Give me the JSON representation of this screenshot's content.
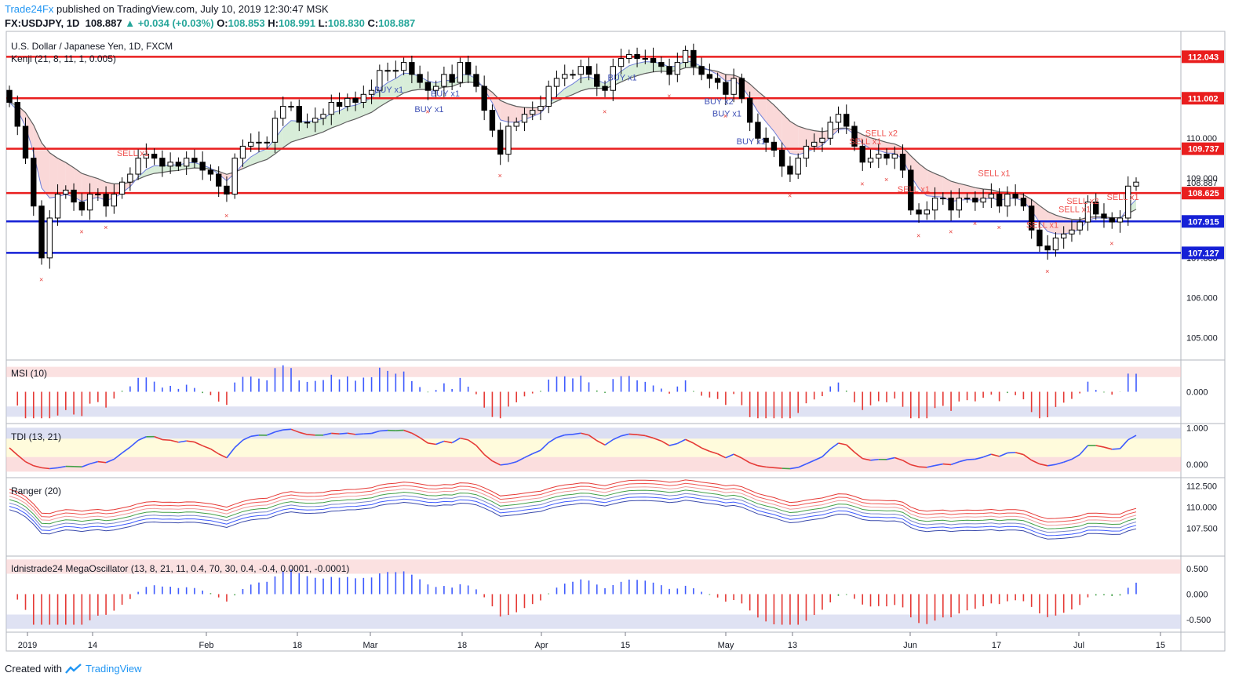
{
  "header": {
    "brand": "Trade24Fx",
    "published": " published on TradingView.com, July 10, 2019 12:30:47 MSK",
    "symbol": "FX:USDJPY, 1D",
    "last": "108.887",
    "change": "▲ +0.034 (+0.03%)",
    "o_label": "O:",
    "o": "108.853",
    "h_label": "H:",
    "h": "108.991",
    "l_label": "L:",
    "l": "108.830",
    "c_label": "C:",
    "c": "108.887"
  },
  "footer": {
    "created": "Created with",
    "tv": "TradingView"
  },
  "chart_data": [
    {
      "type": "candlestick",
      "title": "U.S. Dollar / Japanese Yen, 1D, FXCM",
      "indicator": "Kenji (21, 8, 11, 1, 0.005)",
      "ylim": [
        104.5,
        112.6
      ],
      "y_ticks": [
        "105.000",
        "106.000",
        "107.000",
        "108.000",
        "109.000",
        "110.000",
        "111.000"
      ],
      "x_labels": [
        "2019",
        "14",
        "Feb",
        "18",
        "Mar",
        "18",
        "Apr",
        "15",
        "May",
        "13",
        "Jun",
        "17",
        "Jul",
        "15"
      ],
      "last_price": "108.887",
      "levels": [
        {
          "value": 112.043,
          "label": "112.043",
          "color": "#e91e1e"
        },
        {
          "value": 111.002,
          "label": "111.002",
          "color": "#e91e1e"
        },
        {
          "value": 109.737,
          "label": "109.737",
          "color": "#e91e1e"
        },
        {
          "value": 108.625,
          "label": "108.625",
          "color": "#e91e1e"
        },
        {
          "value": 107.915,
          "label": "107.915",
          "color": "#1520d6"
        },
        {
          "value": 107.127,
          "label": "107.127",
          "color": "#1520d6"
        }
      ],
      "closes": [
        110.9,
        110.3,
        109.5,
        108.3,
        107.0,
        108.0,
        108.6,
        108.7,
        108.4,
        108.2,
        108.6,
        108.6,
        108.3,
        108.6,
        108.9,
        109.1,
        109.5,
        109.6,
        109.5,
        109.3,
        109.4,
        109.3,
        109.5,
        109.4,
        109.2,
        109.1,
        108.8,
        108.6,
        109.5,
        109.8,
        109.9,
        109.9,
        109.9,
        110.5,
        110.8,
        110.8,
        110.4,
        110.4,
        110.5,
        110.6,
        110.9,
        110.8,
        111.0,
        110.9,
        111.1,
        111.2,
        111.7,
        111.7,
        111.7,
        111.9,
        111.6,
        111.4,
        111.2,
        111.3,
        111.6,
        111.4,
        111.9,
        111.6,
        111.3,
        110.7,
        110.2,
        109.6,
        110.3,
        110.4,
        110.6,
        110.7,
        110.8,
        111.3,
        111.5,
        111.6,
        111.6,
        111.8,
        111.6,
        111.3,
        111.2,
        111.8,
        112.0,
        112.1,
        112.0,
        112.0,
        111.9,
        111.8,
        111.6,
        111.9,
        112.2,
        111.8,
        111.6,
        111.5,
        111.4,
        111.1,
        111.5,
        111.0,
        110.4,
        110.0,
        109.9,
        109.7,
        109.3,
        109.1,
        109.5,
        109.8,
        109.9,
        110.0,
        110.4,
        110.6,
        110.3,
        109.8,
        109.4,
        109.5,
        109.6,
        109.5,
        109.6,
        109.2,
        108.2,
        108.1,
        108.2,
        108.5,
        108.5,
        108.2,
        108.5,
        108.5,
        108.4,
        108.5,
        108.6,
        108.3,
        108.6,
        108.5,
        108.3,
        107.7,
        107.3,
        107.2,
        107.5,
        107.6,
        107.7,
        107.9,
        108.4,
        108.1,
        108.0,
        107.9,
        108.0,
        108.8,
        108.9
      ],
      "buy_signals": [
        {
          "label": "BUY x1"
        },
        {
          "label": "BUY x1"
        },
        {
          "label": "BUY x1"
        },
        {
          "label": "BUY x1"
        },
        {
          "label": "BUY x2"
        },
        {
          "label": "BUY x1"
        },
        {
          "label": "BUY x1"
        }
      ],
      "sell_signals": [
        {
          "label": "SELL x1"
        },
        {
          "label": "SELL x1"
        },
        {
          "label": "SELL x2"
        },
        {
          "label": "SELL x1"
        },
        {
          "label": "SELL x1"
        },
        {
          "label": "SELL x1"
        },
        {
          "label": "SELL x1"
        },
        {
          "label": "SELL x2"
        },
        {
          "label": "SELL x1"
        }
      ]
    },
    {
      "type": "bar",
      "title": "MSI (10)",
      "ylim": [
        -1,
        1
      ],
      "y_ticks": [
        "0.000"
      ]
    },
    {
      "type": "line",
      "title": "TDI (13, 21)",
      "ylim": [
        -0.3,
        1.05
      ],
      "y_ticks": [
        "1.000",
        "0.000"
      ]
    },
    {
      "type": "line",
      "title": "Ranger (20)",
      "ylim": [
        104.5,
        113.2
      ],
      "y_ticks": [
        "112.500",
        "110.000",
        "107.500"
      ]
    },
    {
      "type": "bar",
      "title": "Idnistrade24 MegaOscillator (13, 8, 21, 11, 0.4, 70, 30, 0.4, -0.4, 0.0001, -0.0001)",
      "ylim": [
        -0.7,
        0.7
      ],
      "y_ticks": [
        "0.500",
        "0.000",
        "-0.500"
      ]
    }
  ]
}
